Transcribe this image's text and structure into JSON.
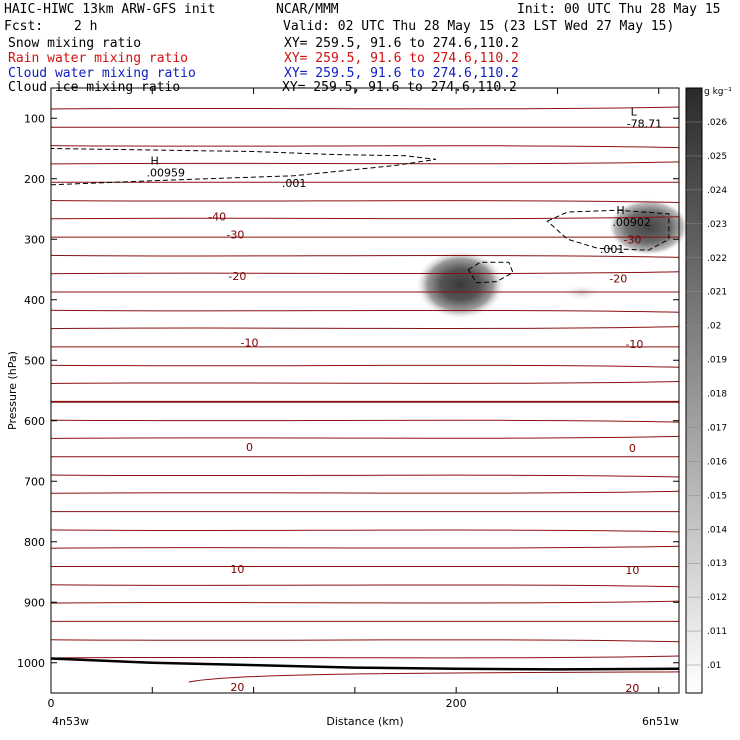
{
  "header": {
    "title": "HAIC-HIWC 13km ARW-GFS init",
    "org": "NCAR/MMM",
    "init": "Init: 00 UTC Thu 28 May 15",
    "fcst_label": "Fcst:",
    "fcst_value": "2 h",
    "valid": "Valid: 02 UTC Thu 28 May 15 (23 LST Wed 27 May 15)",
    "fields": [
      {
        "name": "Snow mixing ratio",
        "xy": "XY= 259.5, 91.6 to 274.6,110.2",
        "color": "#000000"
      },
      {
        "name": "Rain water mixing ratio",
        "xy": "XY= 259.5, 91.6 to 274.6,110.2",
        "color": "#d01010"
      },
      {
        "name": "Cloud water mixing ratio",
        "xy": "XY= 259.5, 91.6 to 274.6,110.2",
        "color": "#1020c0"
      },
      {
        "name": "Cloud ice mixing ratio",
        "xy": "XY= 259.5, 91.6 to 274.6,110.2",
        "color": "#000000"
      }
    ]
  },
  "chart_data": {
    "type": "contour",
    "xlabel": "Distance (km)",
    "ylabel": "Pressure (hPa)",
    "xlim": [
      0,
      310
    ],
    "ylim": [
      50,
      1050
    ],
    "y_scale": "linear",
    "x_ticks": [
      0,
      200
    ],
    "y_ticks": [
      100,
      200,
      300,
      400,
      500,
      600,
      700,
      800,
      900,
      1000
    ],
    "x_endpoints": {
      "left": "4n53w",
      "right": "6n51w"
    },
    "colorbar": {
      "units": "g kg⁻¹",
      "levels": [
        ".01",
        ".011",
        ".012",
        ".013",
        ".014",
        ".015",
        ".016",
        ".017",
        ".018",
        ".019",
        ".02",
        ".021",
        ".022",
        ".023",
        ".024",
        ".025",
        ".026"
      ]
    },
    "temperature_labels": [
      {
        "value": "-40",
        "x": 82,
        "p": 262
      },
      {
        "value": "-30",
        "x": 91,
        "p": 292
      },
      {
        "value": "-30",
        "x": 287,
        "p": 300
      },
      {
        "value": "-20",
        "x": 92,
        "p": 361
      },
      {
        "value": "-20",
        "x": 280,
        "p": 365
      },
      {
        "value": "-10",
        "x": 98,
        "p": 471
      },
      {
        "value": "-10",
        "x": 288,
        "p": 473
      },
      {
        "value": "0",
        "x": 98,
        "p": 643
      },
      {
        "value": "0",
        "x": 287,
        "p": 645
      },
      {
        "value": "10",
        "x": 92,
        "p": 845
      },
      {
        "value": "10",
        "x": 287,
        "p": 847
      },
      {
        "value": "20",
        "x": 92,
        "p": 1040
      },
      {
        "value": "20",
        "x": 287,
        "p": 1042
      }
    ],
    "extrema_labels": [
      {
        "kind": "H",
        "value": ".00959",
        "x": 58,
        "p": 193
      },
      {
        "kind": "H",
        "value": ".00902",
        "x": 288,
        "p": 275
      },
      {
        "kind": "L",
        "value": "-78.71",
        "x": 295,
        "p": 112
      }
    ],
    "dashed_contour_labels": [
      {
        "value": ".001",
        "x": 120,
        "p": 207
      },
      {
        "value": ".001",
        "x": 277,
        "p": 316
      }
    ],
    "shaded_maxima": [
      {
        "x": 202,
        "p": 375,
        "value_max": 0.026
      },
      {
        "x": 295,
        "p": 280,
        "value_max": 0.024
      },
      {
        "x": 262,
        "p": 388,
        "value_max": 0.012
      }
    ],
    "ground_pressure": {
      "x": [
        0,
        50,
        100,
        150,
        200,
        250,
        310
      ],
      "p": [
        993,
        1000,
        1004,
        1008,
        1010,
        1011,
        1010
      ]
    }
  }
}
